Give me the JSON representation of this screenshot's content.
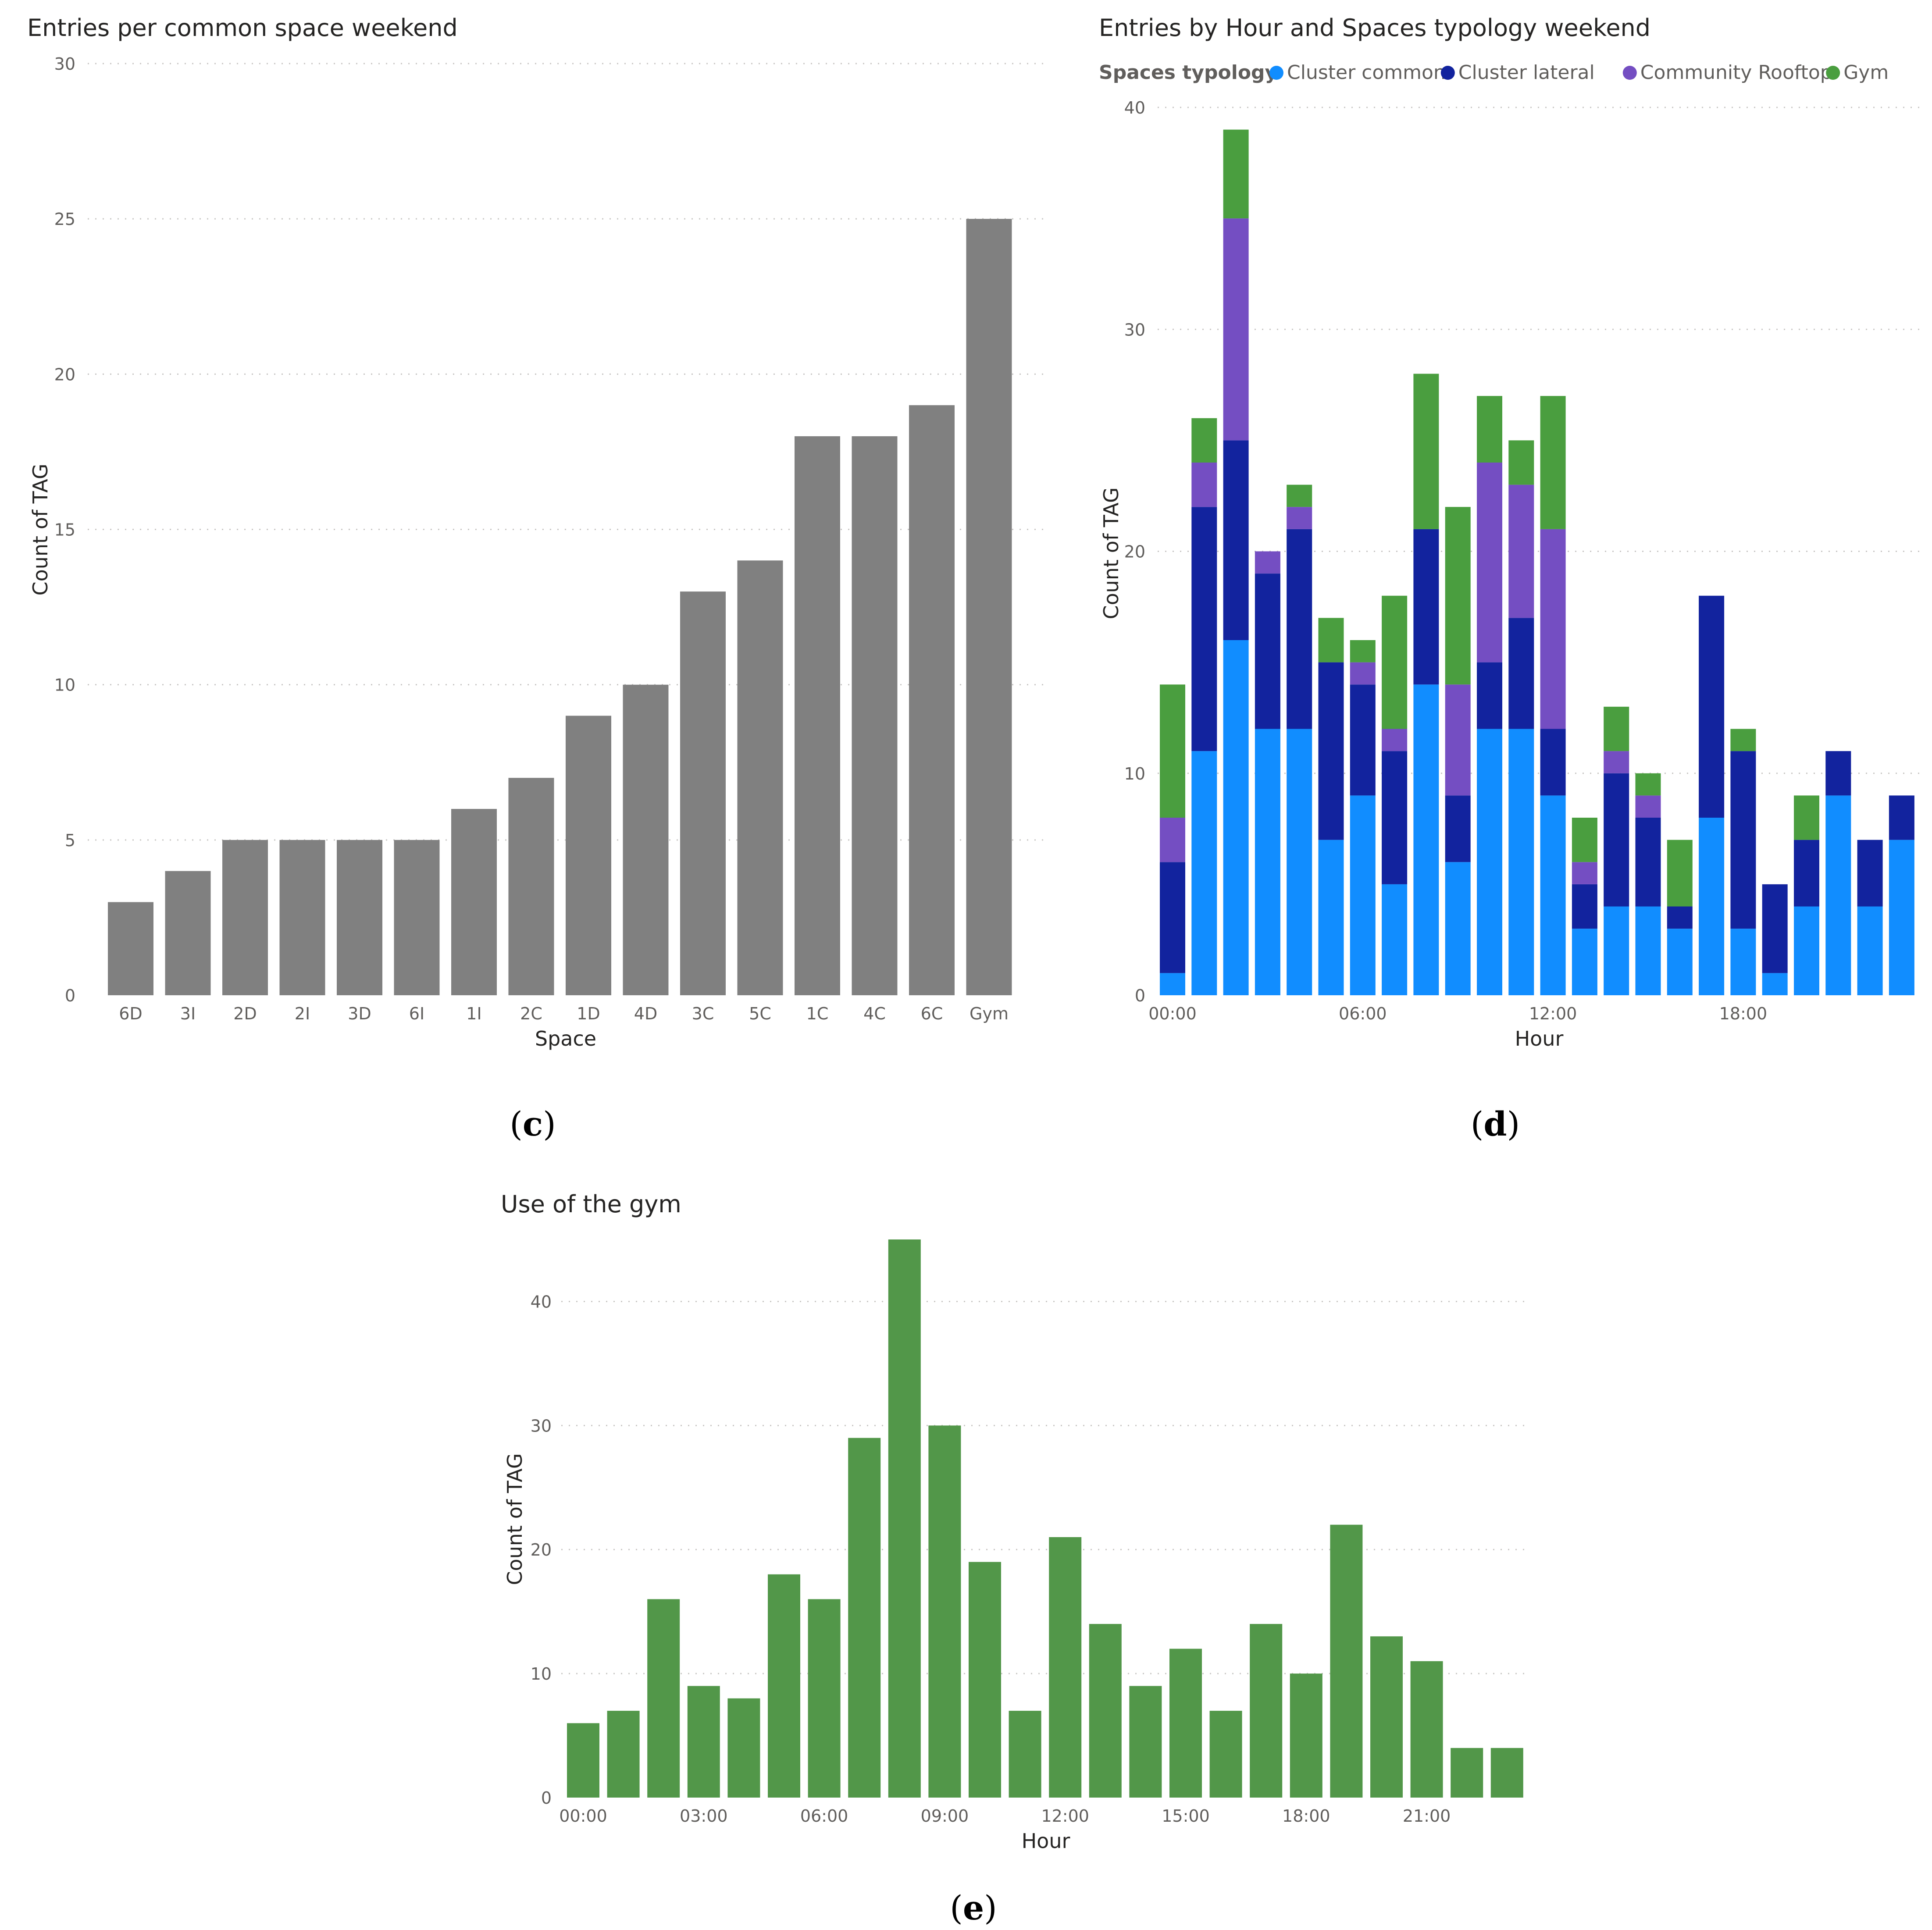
{
  "chart_data": [
    {
      "id": "c",
      "type": "bar",
      "title": "Entries per common space weekend",
      "caption_letter": "c",
      "xlabel": "Space",
      "ylabel": "Count of TAG",
      "ylim": [
        0,
        30
      ],
      "yticks": [
        0,
        5,
        10,
        15,
        20,
        25,
        30
      ],
      "grid": true,
      "color": "#808080",
      "categories": [
        "6D",
        "3I",
        "2D",
        "2I",
        "3D",
        "6I",
        "1I",
        "2C",
        "1D",
        "4D",
        "3C",
        "5C",
        "1C",
        "4C",
        "6C",
        "Gym"
      ],
      "values": [
        3,
        4,
        5,
        5,
        5,
        5,
        6,
        7,
        9,
        10,
        13,
        14,
        18,
        18,
        19,
        25
      ]
    },
    {
      "id": "d",
      "type": "bar",
      "stacked": true,
      "title": "Entries by Hour and Spaces typology weekend",
      "caption_letter": "d",
      "xlabel": "Hour",
      "ylabel": "Count of TAG",
      "ylim": [
        0,
        40
      ],
      "yticks": [
        0,
        10,
        20,
        30,
        40
      ],
      "grid": true,
      "legend_title": "Spaces typology",
      "legend_placement": "top-left",
      "hours": [
        0,
        1,
        2,
        3,
        4,
        5,
        6,
        7,
        8,
        9,
        10,
        11,
        12,
        13,
        14,
        15,
        16,
        17,
        18,
        19,
        20,
        21,
        22,
        23
      ],
      "xtick_hours": [
        0,
        6,
        12,
        18
      ],
      "xtick_labels": [
        "00:00",
        "06:00",
        "12:00",
        "18:00"
      ],
      "series": [
        {
          "name": "Cluster common",
          "color": "#118dff",
          "values": [
            1,
            11,
            16,
            12,
            12,
            7,
            9,
            5,
            14,
            6,
            12,
            12,
            9,
            3,
            4,
            4,
            3,
            8,
            3,
            1,
            4,
            9,
            4,
            7
          ]
        },
        {
          "name": "Cluster lateral",
          "color": "#12239e",
          "values": [
            5,
            11,
            9,
            7,
            9,
            8,
            5,
            6,
            7,
            3,
            3,
            5,
            3,
            2,
            6,
            4,
            1,
            10,
            8,
            4,
            3,
            2,
            3,
            2
          ]
        },
        {
          "name": "Community Rooftop",
          "color": "#744ec2",
          "values": [
            2,
            2,
            10,
            1,
            1,
            0,
            1,
            1,
            0,
            5,
            9,
            6,
            9,
            1,
            1,
            1,
            0,
            0,
            0,
            0,
            0,
            0,
            0,
            0
          ]
        },
        {
          "name": "Gym",
          "color": "#4a9e3f",
          "values": [
            6,
            2,
            4,
            0,
            1,
            2,
            1,
            6,
            7,
            8,
            3,
            2,
            6,
            2,
            2,
            1,
            3,
            0,
            1,
            0,
            2,
            0,
            0,
            0
          ]
        }
      ]
    },
    {
      "id": "e",
      "type": "bar",
      "title": "Use of the gym",
      "caption_letter": "e",
      "xlabel": "Hour",
      "ylabel": "Count of TAG",
      "ylim": [
        0,
        45
      ],
      "yticks": [
        0,
        10,
        20,
        30,
        40
      ],
      "grid": true,
      "color": "#529749",
      "hours": [
        0,
        1,
        2,
        3,
        4,
        5,
        6,
        7,
        8,
        9,
        10,
        11,
        12,
        13,
        14,
        15,
        16,
        17,
        18,
        19,
        20,
        21,
        22,
        23
      ],
      "xtick_hours": [
        0,
        3,
        6,
        9,
        12,
        15,
        18,
        21
      ],
      "xtick_labels": [
        "00:00",
        "03:00",
        "06:00",
        "09:00",
        "12:00",
        "15:00",
        "18:00",
        "21:00"
      ],
      "values": [
        6,
        7,
        16,
        9,
        8,
        18,
        16,
        29,
        45,
        30,
        19,
        7,
        21,
        14,
        9,
        12,
        7,
        14,
        10,
        22,
        13,
        11,
        4,
        4
      ]
    }
  ]
}
